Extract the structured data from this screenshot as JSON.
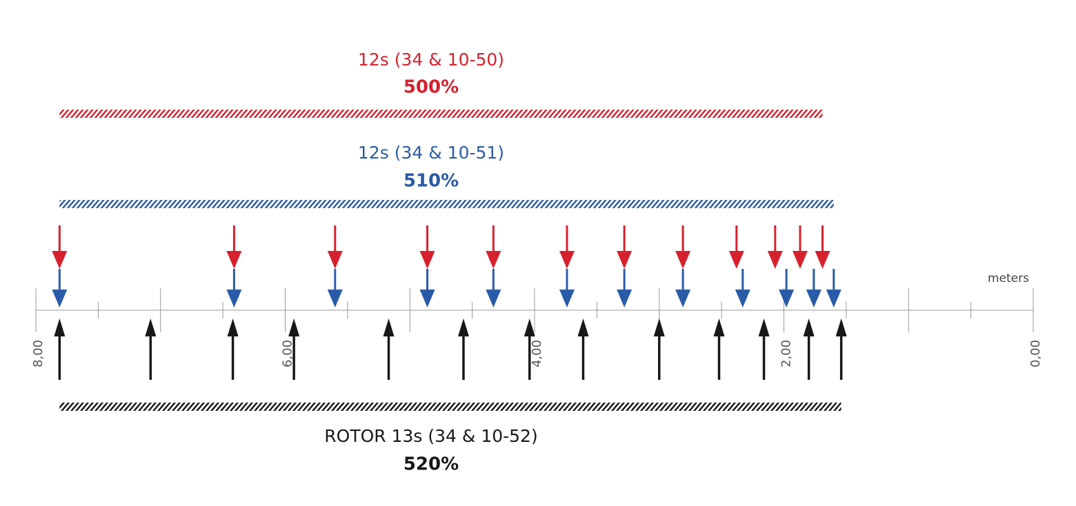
{
  "chart_data": {
    "type": "development",
    "x_label": "meters",
    "xlim": [
      8,
      0
    ],
    "xticks": [
      {
        "value": 8,
        "label": "8,00"
      },
      {
        "value": 6,
        "label": "6,00"
      },
      {
        "value": 4,
        "label": "4,00"
      },
      {
        "value": 2,
        "label": "2,00"
      },
      {
        "value": 0,
        "label": "0,00"
      }
    ],
    "xminor_ticks": [
      7.5,
      7,
      6.5,
      5.5,
      5,
      4.5,
      3.5,
      3,
      2.5,
      1.5,
      1,
      0.5
    ],
    "series": [
      {
        "name": "12s (34 & 10-50)",
        "percent_label": "500%",
        "color": "#d7202e",
        "direction": "down",
        "values": [
          7.81,
          6.41,
          5.6,
          4.86,
          4.33,
          3.74,
          3.28,
          2.81,
          2.38,
          2.07,
          1.87,
          1.69
        ]
      },
      {
        "name": "12s (34 & 10-51)",
        "percent_label": "510%",
        "color": "#2a5ba8",
        "direction": "down",
        "values": [
          7.81,
          6.41,
          5.6,
          4.86,
          4.33,
          3.74,
          3.28,
          2.81,
          2.33,
          1.98,
          1.76,
          1.6
        ]
      },
      {
        "name": "ROTOR 13s (34 & 10-52)",
        "percent_label": "520%",
        "color": "#1a1717",
        "direction": "up",
        "values": [
          7.81,
          7.08,
          6.42,
          5.93,
          5.17,
          4.57,
          4.04,
          3.61,
          3.0,
          2.52,
          2.16,
          1.8,
          1.54
        ]
      }
    ]
  }
}
